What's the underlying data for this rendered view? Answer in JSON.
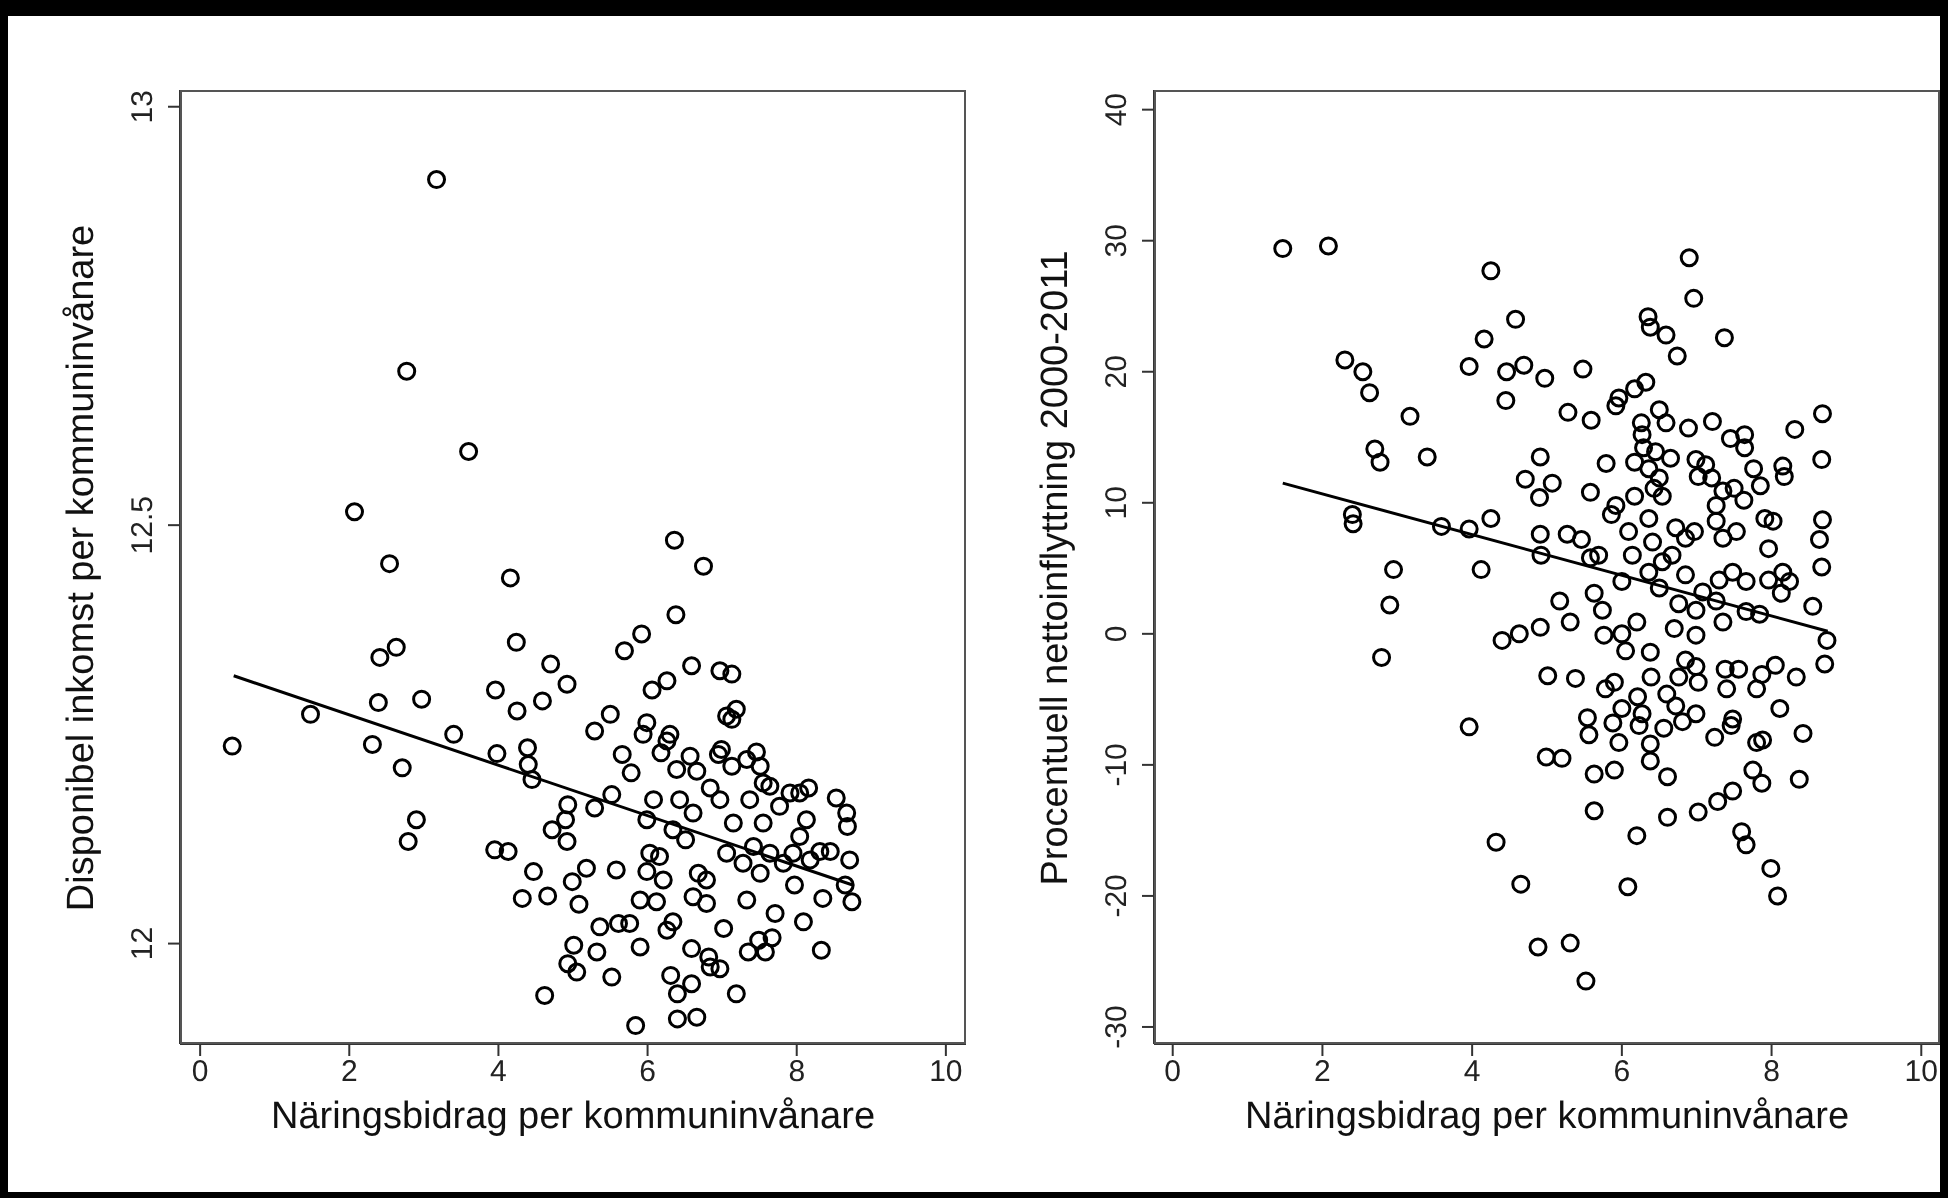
{
  "chart_data": [
    {
      "type": "scatter",
      "xlabel": "Näringsbidrag per kommuninvånare",
      "ylabel": "Disponibel inkomst per kommuninvånare",
      "xlim": [
        -0.27,
        10.27
      ],
      "xticks": [
        0,
        2,
        4,
        6,
        8,
        10
      ],
      "ylim": [
        11.88,
        13.02
      ],
      "yticks": [
        12,
        12.5,
        13
      ],
      "marker": "circle",
      "series": [
        {
          "color": "#000000",
          "x": [
            3.17,
            2.77,
            3.6,
            2.07,
            2.54,
            4.16,
            6.36,
            6.75,
            6.38,
            2.41,
            2.63,
            4.24,
            4.7,
            4.92,
            3.96,
            5.69,
            5.92,
            6.06,
            6.26,
            6.59,
            6.97,
            7.13,
            0.43,
            1.48,
            2.31,
            2.39,
            2.71,
            2.9,
            2.79,
            2.97,
            3.4,
            3.98,
            3.95,
            4.13,
            4.32,
            4.47,
            4.25,
            4.39,
            4.4,
            4.45,
            4.59,
            4.66,
            4.62,
            4.93,
            4.9,
            4.72,
            4.92,
            4.99,
            5.01,
            4.93,
            5.05,
            5.08,
            5.18,
            5.29,
            5.5,
            5.29,
            5.32,
            5.36,
            5.52,
            5.58,
            5.61,
            5.66,
            5.78,
            5.52,
            5.99,
            5.94,
            5.9,
            5.76,
            5.9,
            5.84,
            5.99,
            6.03,
            5.99,
            6.08,
            6.18,
            6.26,
            6.31,
            6.26,
            6.4,
            6.4,
            6.66,
            6.59,
            6.59,
            6.34,
            6.39,
            6.57,
            6.66,
            6.61,
            6.51,
            6.68,
            6.79,
            6.82,
            6.97,
            6.84,
            7.02,
            6.95,
            6.99,
            7.13,
            6.84,
            6.97,
            7.15,
            7.06,
            7.33,
            7.19,
            7.35,
            7.58,
            7.49,
            7.67,
            7.71,
            7.13,
            7.19,
            7.06,
            7.33,
            7.46,
            7.51,
            7.55,
            7.37,
            7.64,
            7.77,
            7.91,
            8.04,
            8.16,
            8.13,
            8.04,
            7.95,
            7.82,
            8.18,
            8.31,
            8.45,
            7.97,
            8.09,
            8.35,
            8.33,
            8.53,
            8.67,
            8.68,
            8.71,
            8.65,
            8.74,
            7.55,
            7.42,
            7.28,
            7.51,
            7.64,
            6.43,
            6.34,
            6.16,
            6.21,
            6.12,
            6.61,
            6.79,
            6.3
          ],
          "values": [
            12.913,
            12.684,
            12.588,
            12.516,
            12.454,
            12.437,
            12.482,
            12.451,
            12.393,
            12.342,
            12.354,
            12.36,
            12.334,
            12.31,
            12.303,
            12.35,
            12.37,
            12.303,
            12.314,
            12.332,
            12.326,
            12.322,
            12.236,
            12.274,
            12.238,
            12.288,
            12.21,
            12.148,
            12.122,
            12.292,
            12.25,
            12.227,
            12.112,
            12.11,
            12.054,
            12.086,
            12.278,
            12.234,
            12.214,
            12.196,
            12.29,
            12.057,
            11.938,
            12.166,
            12.148,
            12.136,
            12.122,
            12.074,
            11.998,
            11.976,
            11.966,
            12.047,
            12.09,
            12.254,
            12.274,
            12.162,
            11.99,
            12.02,
            11.96,
            12.088,
            12.024,
            12.226,
            12.204,
            12.178,
            12.264,
            12.25,
            12.052,
            12.024,
            11.996,
            11.902,
            12.148,
            12.108,
            12.086,
            12.172,
            12.228,
            12.242,
            11.962,
            12.016,
            11.94,
            11.91,
            11.912,
            11.952,
            11.994,
            12.026,
            12.208,
            12.224,
            12.206,
            12.156,
            12.124,
            12.084,
            12.048,
            11.984,
            11.97,
            11.972,
            12.018,
            12.226,
            12.232,
            12.212,
            12.186,
            12.172,
            12.144,
            12.108,
            12.052,
            11.94,
            11.99,
            11.99,
            12.004,
            12.007,
            12.036,
            12.268,
            12.28,
            12.272,
            12.22,
            12.229,
            12.212,
            12.192,
            12.172,
            12.188,
            12.164,
            12.18,
            12.18,
            12.186,
            12.148,
            12.128,
            12.108,
            12.096,
            12.1,
            12.11,
            12.11,
            12.07,
            12.026,
            12.054,
            11.992,
            12.174,
            12.156,
            12.14,
            12.1,
            12.07,
            12.05,
            12.144,
            12.116,
            12.096,
            12.084,
            12.108,
            12.172,
            12.136,
            12.104,
            12.076,
            12.05,
            12.056,
            12.076,
            12.25
          ]
        },
        {
          "type": "line",
          "color": "#000000",
          "marker": "none",
          "line_style": "solid",
          "x": [
            0.45,
            8.75
          ],
          "values": [
            12.32,
            12.07
          ]
        }
      ]
    },
    {
      "type": "scatter",
      "xlabel": "Näringsbidrag per kommuninvånare",
      "ylabel": "Procentuell nettoinflyttning 2000-2011",
      "xlim": [
        -0.25,
        10.25
      ],
      "xticks": [
        0,
        2,
        4,
        6,
        8,
        10
      ],
      "ylim": [
        -31.3,
        41.5
      ],
      "yticks": [
        -30,
        -20,
        -10,
        0,
        10,
        20,
        30,
        40
      ],
      "marker": "circle",
      "series": [
        {
          "color": "#000000",
          "x": [
            1.47,
            2.08,
            4.25,
            6.9,
            6.96,
            7.37,
            6.35,
            6.38,
            6.59,
            6.74,
            4.16,
            4.58,
            2.3,
            2.54,
            2.63,
            3.96,
            4.46,
            4.69,
            4.97,
            5.48,
            4.45,
            3.17,
            3.4,
            2.7,
            2.77,
            5.28,
            5.59,
            5.96,
            6.32,
            6.17,
            5.92,
            6.5,
            6.59,
            6.26,
            6.89,
            7.21,
            7.45,
            7.64,
            7.64,
            7.76,
            8.15,
            8.17,
            8.31,
            8.68,
            8.67,
            8.68,
            8.64,
            8.67,
            8.55,
            8.74,
            4.91,
            4.71,
            5.07,
            4.9,
            5.79,
            5.58,
            6.27,
            6.29,
            6.45,
            6.65,
            6.17,
            6.36,
            6.5,
            6.43,
            6.54,
            6.17,
            6.99,
            7.12,
            7.02,
            7.2,
            7.35,
            7.63,
            7.5,
            7.85,
            7.26,
            7.26,
            7.35,
            7.53,
            7.91,
            8.02,
            7.96,
            8.15,
            7.96,
            8.24,
            8.13,
            7.84,
            7.66,
            7.48,
            7.3,
            7.08,
            7.26,
            6.85,
            6.67,
            6.85,
            6.97,
            6.72,
            6.41,
            6.36,
            5.92,
            5.86,
            6.09,
            6.14,
            6.0,
            6.36,
            6.54,
            6.5,
            6.76,
            6.99,
            6.7,
            6.99,
            7.35,
            7.66,
            3.59,
            3.96,
            4.25,
            4.12,
            4.92,
            4.91,
            5.27,
            5.46,
            5.58,
            5.69,
            5.17,
            5.31,
            5.63,
            5.74,
            5.76,
            6.0,
            6.2,
            2.4,
            2.41,
            2.95,
            2.9,
            4.4,
            4.63,
            4.91,
            2.79,
            5.01,
            5.38,
            6.05,
            6.38,
            6.39,
            5.78,
            5.9,
            6.0,
            6.21,
            6.27,
            6.6,
            6.72,
            6.76,
            6.56,
            6.38,
            6.38,
            6.61,
            6.61,
            6.2,
            6.08,
            5.9,
            5.63,
            5.63,
            5.54,
            5.56,
            5.88,
            5.96,
            6.23,
            6.81,
            6.99,
            7.02,
            6.99,
            6.85,
            7.24,
            7.48,
            7.46,
            7.4,
            7.38,
            7.56,
            7.8,
            7.87,
            8.05,
            8.33,
            8.11,
            8.42,
            7.8,
            7.88,
            7.75,
            7.87,
            8.37,
            7.28,
            7.48,
            7.6,
            7.66,
            7.99,
            8.08,
            7.02,
            8.71,
            3.96,
            4.32,
            4.65,
            4.88,
            5.31,
            5.52,
            4.99,
            5.2
          ],
          "values": [
            29.4,
            29.6,
            27.7,
            28.7,
            25.6,
            22.6,
            24.2,
            23.4,
            22.8,
            21.2,
            22.5,
            24.0,
            20.9,
            20.0,
            18.4,
            20.4,
            20.0,
            20.5,
            19.5,
            20.2,
            17.8,
            16.6,
            13.5,
            14.1,
            13.1,
            16.9,
            16.3,
            18.0,
            19.2,
            18.7,
            17.4,
            17.1,
            16.1,
            16.1,
            15.7,
            16.2,
            14.9,
            15.2,
            14.2,
            12.6,
            12.8,
            12.0,
            15.6,
            16.8,
            13.3,
            8.7,
            7.2,
            5.1,
            2.1,
            -0.5,
            13.5,
            11.8,
            11.5,
            10.4,
            13.0,
            10.8,
            15.2,
            14.2,
            13.9,
            13.4,
            13.1,
            12.6,
            11.9,
            11.1,
            10.5,
            10.5,
            13.3,
            12.9,
            12.0,
            11.9,
            10.9,
            10.2,
            11.1,
            11.3,
            9.8,
            8.6,
            7.3,
            7.8,
            8.8,
            8.6,
            6.5,
            4.7,
            4.1,
            4.0,
            3.1,
            1.5,
            4.0,
            4.7,
            4.1,
            3.2,
            2.5,
            4.5,
            6.0,
            7.3,
            7.8,
            8.1,
            7.0,
            8.8,
            9.8,
            9.1,
            7.8,
            6.0,
            4.0,
            4.7,
            5.5,
            3.5,
            2.3,
            1.8,
            0.4,
            -0.1,
            0.9,
            1.7,
            8.2,
            8.0,
            8.8,
            4.9,
            6.0,
            7.6,
            7.6,
            7.2,
            5.8,
            6.0,
            2.5,
            0.9,
            3.1,
            1.8,
            -0.1,
            0.0,
            0.9,
            9.1,
            8.4,
            4.9,
            2.2,
            -0.5,
            0.0,
            0.5,
            -1.8,
            -3.2,
            -3.4,
            -1.3,
            -1.4,
            -3.3,
            -4.2,
            -3.7,
            -5.7,
            -4.8,
            -6.1,
            -4.6,
            -5.5,
            -3.3,
            -7.2,
            -8.4,
            -9.7,
            -10.9,
            -14.0,
            -15.4,
            -19.3,
            -10.4,
            -10.7,
            -13.5,
            -6.4,
            -7.7,
            -6.8,
            -8.3,
            -7.0,
            -6.7,
            -6.1,
            -3.7,
            -2.5,
            -2.0,
            -7.9,
            -6.5,
            -7.0,
            -4.2,
            -2.7,
            -2.7,
            -4.2,
            -3.1,
            -2.4,
            -3.3,
            -5.7,
            -7.6,
            -8.3,
            -8.1,
            -10.4,
            -11.4,
            -11.1,
            -12.8,
            -12.0,
            -15.1,
            -16.1,
            -17.9,
            -20.0,
            -13.6,
            -2.3,
            -7.1,
            -15.9,
            -19.1,
            -23.9,
            -23.6,
            -26.5,
            -9.4,
            -9.5
          ]
        },
        {
          "type": "line",
          "color": "#000000",
          "marker": "none",
          "line_style": "solid",
          "x": [
            1.47,
            8.75
          ],
          "values": [
            11.5,
            0.2
          ]
        }
      ]
    }
  ]
}
